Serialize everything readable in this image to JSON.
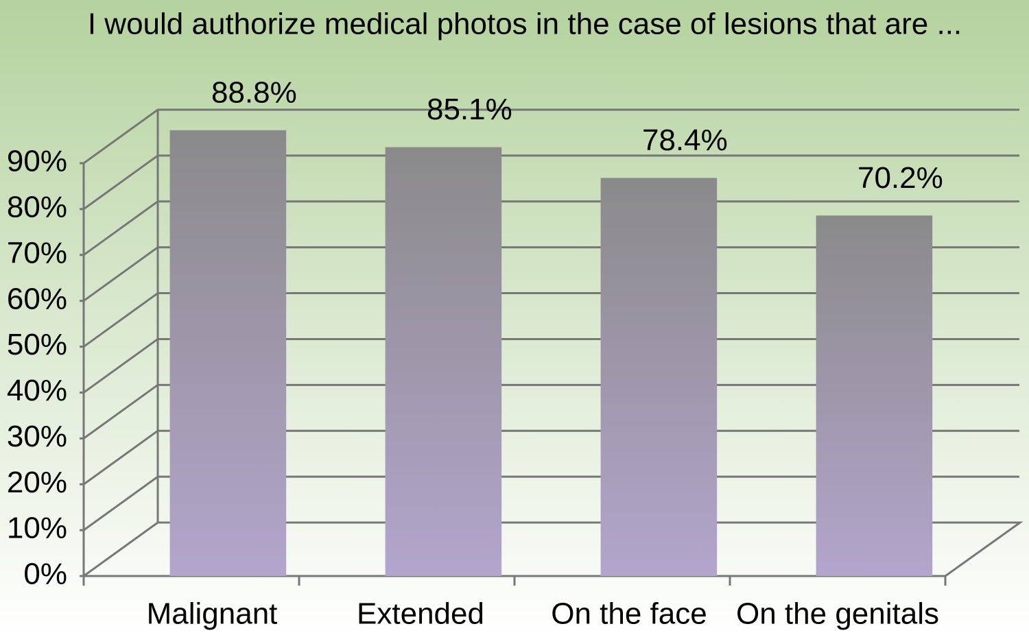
{
  "chart_data": {
    "type": "bar",
    "title": "I would authorize medical photos in the case of lesions that are ...",
    "categories": [
      "Malignant",
      "Extended",
      "On the face",
      "On the genitals"
    ],
    "values": [
      88.8,
      85.1,
      78.4,
      70.2
    ],
    "value_labels": [
      "88.8%",
      "85.1%",
      "78.4%",
      "70.2%"
    ],
    "color": [
      "#8a8a8a",
      "#b3a5cc"
    ],
    "ylim": [
      0,
      90
    ],
    "yticks": [
      {
        "value": 0,
        "label": "0%"
      },
      {
        "value": 10,
        "label": "10%"
      },
      {
        "value": 20,
        "label": "20%"
      },
      {
        "value": 30,
        "label": "30%"
      },
      {
        "value": 40,
        "label": "40%"
      },
      {
        "value": 50,
        "label": "50%"
      },
      {
        "value": 60,
        "label": "60%"
      },
      {
        "value": 70,
        "label": "70%"
      },
      {
        "value": 80,
        "label": "80%"
      },
      {
        "value": 90,
        "label": "90%"
      }
    ],
    "grid": true
  }
}
